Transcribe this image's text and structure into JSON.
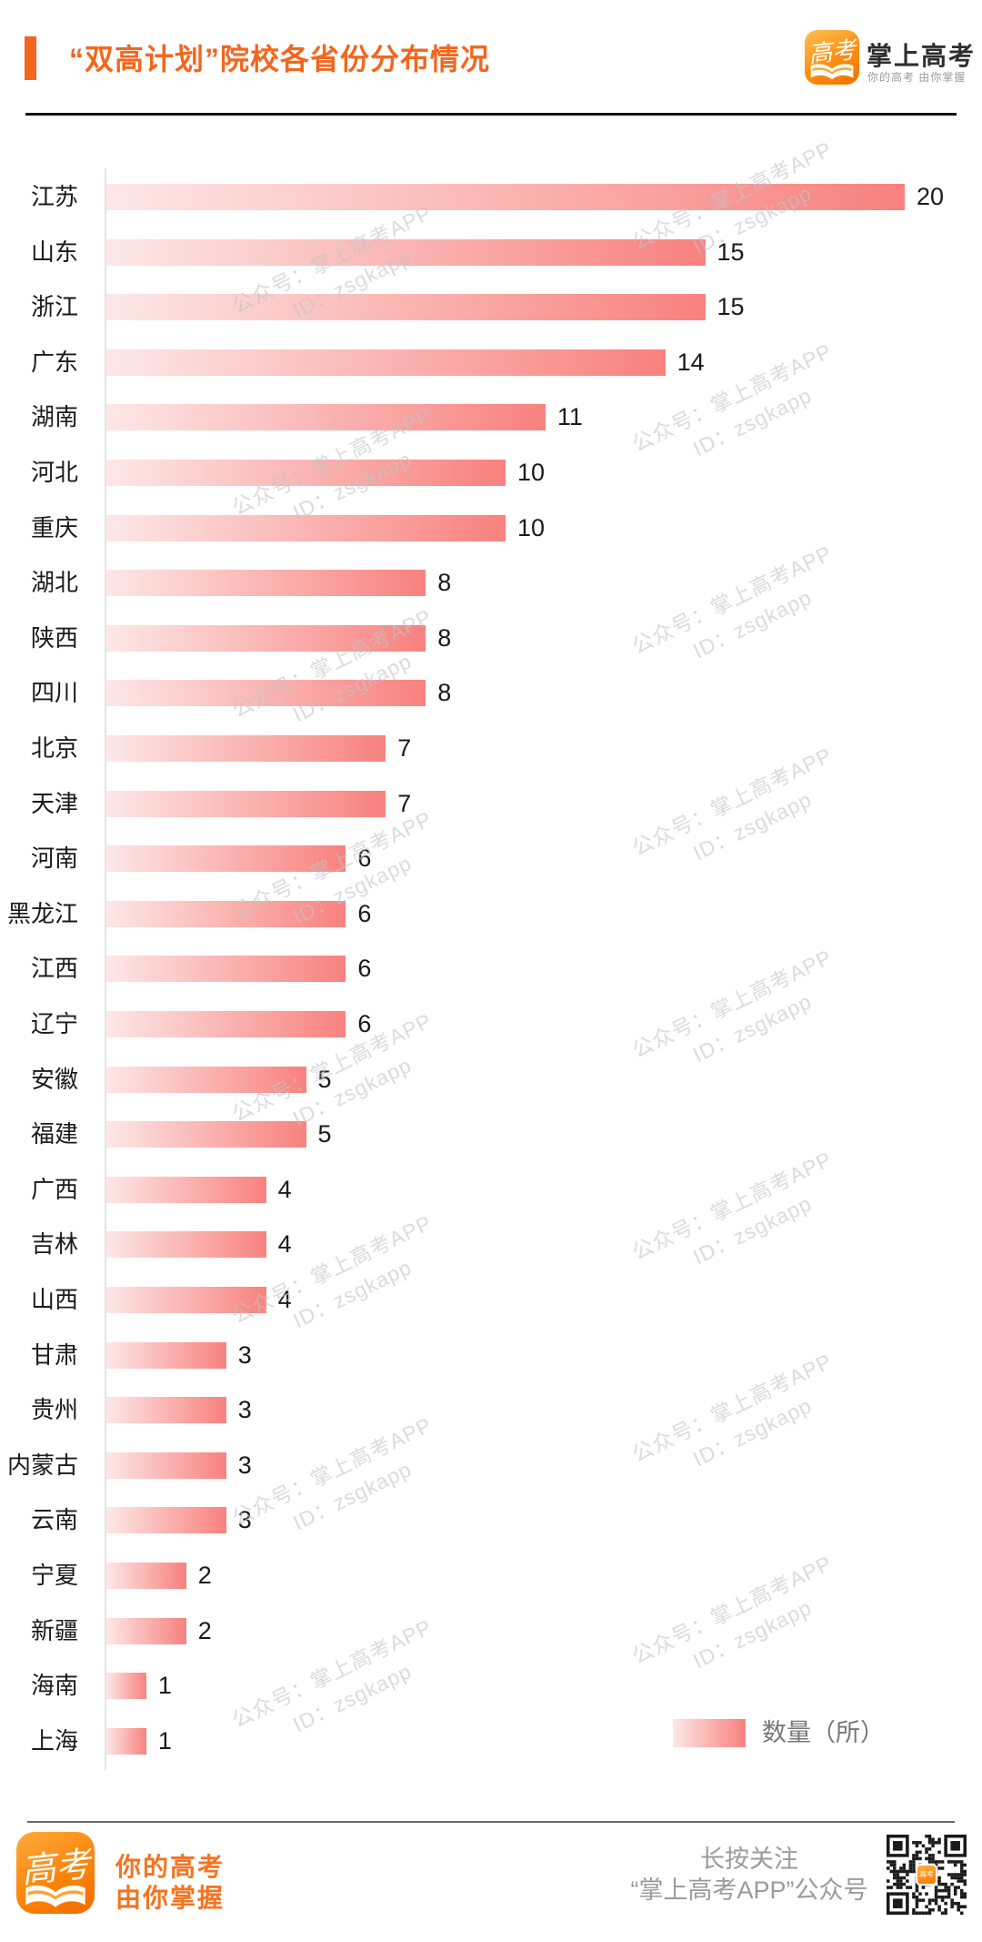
{
  "header": {
    "title": "“双高计划”院校各省份分布情况",
    "logo": {
      "icon_text": "高考",
      "app_name": "掌上高考",
      "tagline": "你的高考 由你掌握"
    }
  },
  "chart_data": {
    "type": "bar",
    "orientation": "horizontal",
    "title": "“双高计划”院校各省份分布情况",
    "categories": [
      "江苏",
      "山东",
      "浙江",
      "广东",
      "湖南",
      "河北",
      "重庆",
      "湖北",
      "陕西",
      "四川",
      "北京",
      "天津",
      "河南",
      "黑龙江",
      "江西",
      "辽宁",
      "安徽",
      "福建",
      "广西",
      "吉林",
      "山西",
      "甘肃",
      "贵州",
      "内蒙古",
      "云南",
      "宁夏",
      "新疆",
      "海南",
      "上海"
    ],
    "values": [
      20,
      15,
      15,
      14,
      11,
      10,
      10,
      8,
      8,
      8,
      7,
      7,
      6,
      6,
      6,
      6,
      5,
      5,
      4,
      4,
      4,
      3,
      3,
      3,
      3,
      2,
      2,
      1,
      1
    ],
    "legend": "数量（所）",
    "xlim": [
      0,
      20
    ],
    "grid": false,
    "value_labels_shown": true,
    "legend_position": "bottom-right",
    "bar_gradient": [
      "#FCE8E7",
      "#F8817E"
    ]
  },
  "watermark": {
    "line1": "公众号：掌上高考APP",
    "line2": "ID：zsgkapp"
  },
  "footer": {
    "slogan_line1": "你的高考",
    "slogan_line2": "由你掌握",
    "follow_line1": "长按关注",
    "follow_line2": "“掌上高考APP”公众号"
  },
  "colors": {
    "accent_orange": "#F3661D",
    "bar_light": "#FCE8E7",
    "bar_dark": "#F8817E",
    "label_text": "#1A1A1A",
    "watermark_gray": "#C4C4C4",
    "footer_gray": "#9B9B9B"
  }
}
